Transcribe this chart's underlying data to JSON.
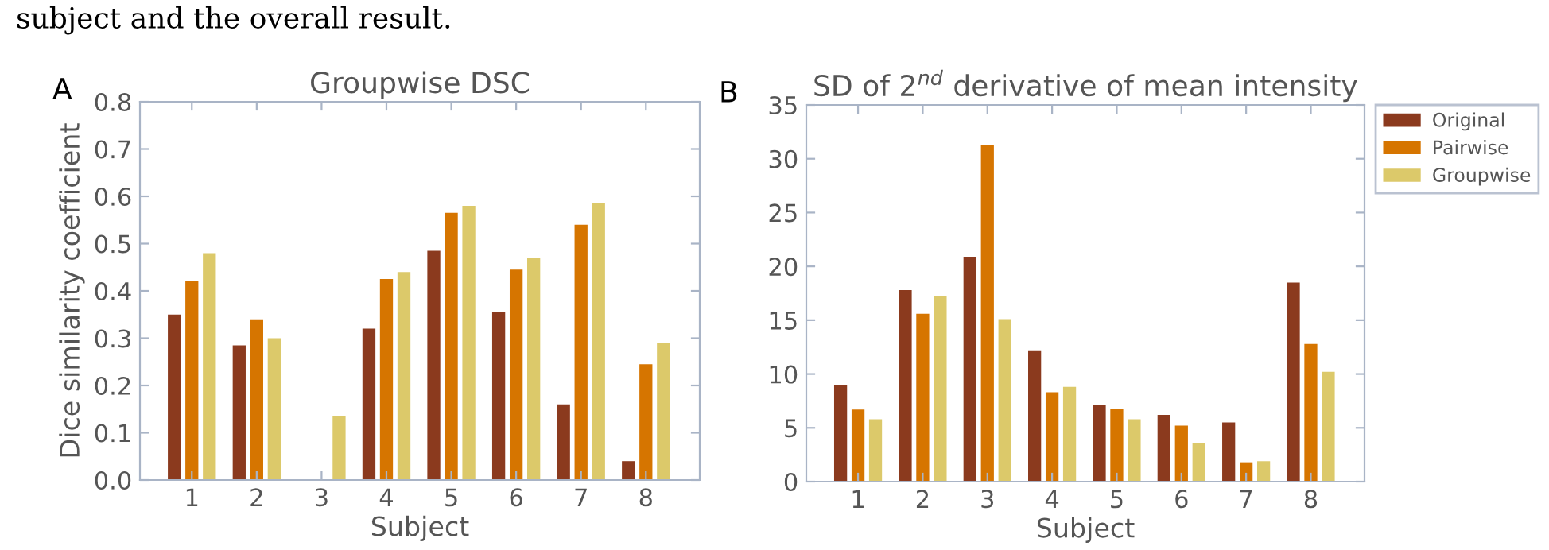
{
  "chart_data": [
    {
      "type": "bar",
      "title": "Groupwise DSC",
      "xlabel": "Subject",
      "ylabel": "Dice similarity coefficient",
      "categories": [
        "1",
        "2",
        "3",
        "4",
        "5",
        "6",
        "7",
        "8"
      ],
      "series": [
        {
          "color": "#8b3a1e",
          "values": [
            0.35,
            0.285,
            null,
            0.32,
            0.485,
            0.355,
            0.16,
            0.04
          ]
        },
        {
          "color": "#d67500",
          "values": [
            0.42,
            0.34,
            null,
            0.425,
            0.565,
            0.445,
            0.54,
            0.245
          ]
        },
        {
          "color": "#dcc96a",
          "values": [
            0.48,
            0.3,
            0.135,
            0.44,
            0.58,
            0.47,
            0.585,
            0.29
          ]
        }
      ],
      "ylim": [
        0,
        0.8
      ],
      "yticks": [
        {
          "value": 0,
          "label": "0.0"
        },
        0.1,
        0.2,
        0.3,
        0.4,
        0.5,
        0.6,
        0.7,
        0.8
      ],
      "grid": false,
      "legend": false,
      "annotations": [
        "subject and the overall result.",
        "A"
      ]
    },
    {
      "type": "bar",
      "title": "SD of 2$^{nd}$ derivative of mean intensity",
      "xlabel": "Subject",
      "categories": [
        "1",
        "2",
        "3",
        "4",
        "5",
        "6",
        "7",
        "8"
      ],
      "series": [
        {
          "name": "Original",
          "color": "#8b3a1e",
          "values": [
            9.0,
            17.8,
            20.9,
            12.2,
            7.1,
            6.2,
            5.5,
            18.5
          ]
        },
        {
          "name": "Pairwise",
          "color": "#d67500",
          "values": [
            6.7,
            15.6,
            31.3,
            8.3,
            6.8,
            5.2,
            1.8,
            12.8
          ]
        },
        {
          "name": "Groupwise",
          "color": "#dcc96a",
          "values": [
            5.8,
            17.2,
            15.1,
            8.8,
            5.8,
            3.6,
            1.9,
            10.2
          ]
        }
      ],
      "ylim": [
        0,
        35
      ],
      "yticks": [
        0,
        5,
        10,
        15,
        20,
        25,
        30,
        35
      ],
      "grid": false,
      "legend": "top right",
      "annotations": [
        "B"
      ]
    }
  ]
}
